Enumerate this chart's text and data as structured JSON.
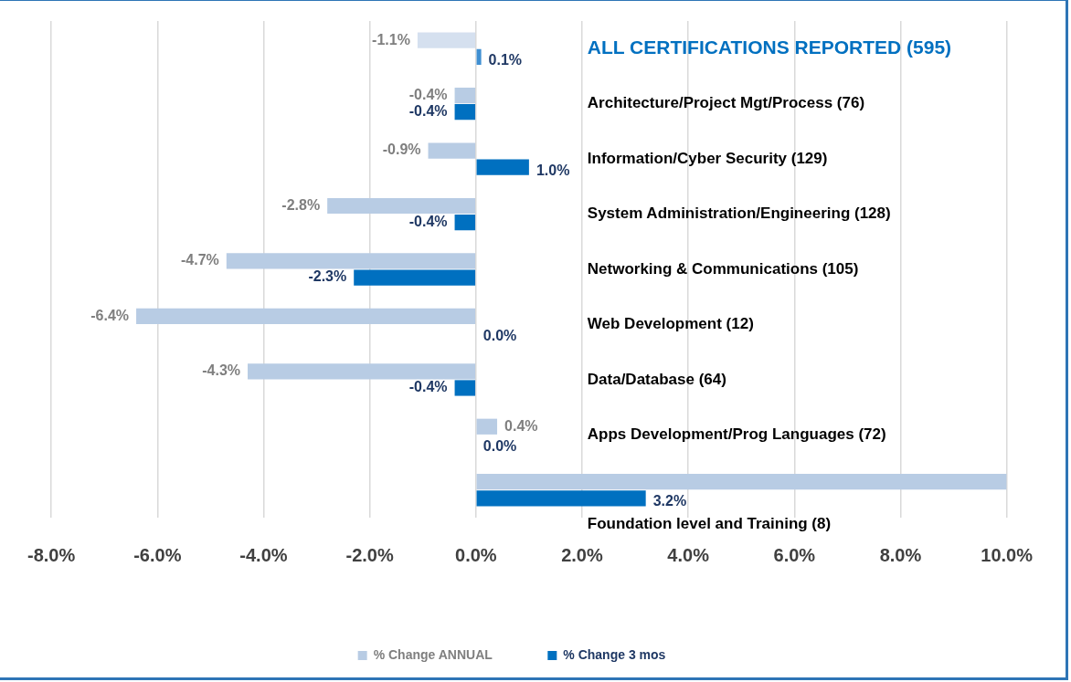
{
  "chart_data": {
    "type": "bar",
    "orientation": "horizontal",
    "categories": [
      "ALL CERTIFICATIONS REPORTED (595)",
      "Architecture/Project Mgt/Process (76)",
      "Information/Cyber Security (129)",
      "System Administration/Engineering (128)",
      "Networking & Communications (105)",
      "Web Development (12)",
      "Data/Database (64)",
      "Apps Development/Prog Languages (72)",
      "Foundation level and Training (8)"
    ],
    "series": [
      {
        "name": "% Change ANNUAL",
        "color": "#b8cce4",
        "colors": [
          "#d5e0ef",
          "#b8cce4",
          "#b8cce4",
          "#b8cce4",
          "#b8cce4",
          "#b8cce4",
          "#b8cce4",
          "#b8cce4",
          "#b8cce4"
        ],
        "values": [
          -1.1,
          -0.4,
          -0.9,
          -2.8,
          -4.7,
          -6.4,
          -4.3,
          0.4,
          10.0
        ],
        "value_labels": [
          "-1.1%",
          "-0.4%",
          "-0.9%",
          "-2.8%",
          "-4.7%",
          "-6.4%",
          "-4.3%",
          "0.4%",
          null
        ]
      },
      {
        "name": "% Change 3 mos",
        "color": "#0070c0",
        "colors": [
          "#3f8fd2",
          "#0070c0",
          "#0070c0",
          "#0070c0",
          "#0070c0",
          "#0070c0",
          "#0070c0",
          "#0070c0",
          "#0070c0"
        ],
        "values": [
          0.1,
          -0.4,
          1.0,
          -0.4,
          -2.3,
          0.0,
          -0.4,
          0.0,
          3.2
        ],
        "value_labels": [
          "0.1%",
          "-0.4%",
          "1.0%",
          "-0.4%",
          "-2.3%",
          "0.0%",
          "-0.4%",
          "0.0%",
          "3.2%"
        ]
      }
    ],
    "xlim": [
      -8,
      10
    ],
    "xticks": [
      {
        "value": -8,
        "label": "-8.0%"
      },
      {
        "value": -6,
        "label": "-6.0%"
      },
      {
        "value": -4,
        "label": "-4.0%"
      },
      {
        "value": -2,
        "label": "-2.0%"
      },
      {
        "value": 0,
        "label": "0.0%"
      },
      {
        "value": 2,
        "label": "2.0%"
      },
      {
        "value": 4,
        "label": "4.0%"
      },
      {
        "value": 6,
        "label": "6.0%"
      },
      {
        "value": 8,
        "label": "8.0%"
      },
      {
        "value": 10,
        "label": "10.0%"
      }
    ],
    "grid": "x",
    "legend": "bottom"
  }
}
